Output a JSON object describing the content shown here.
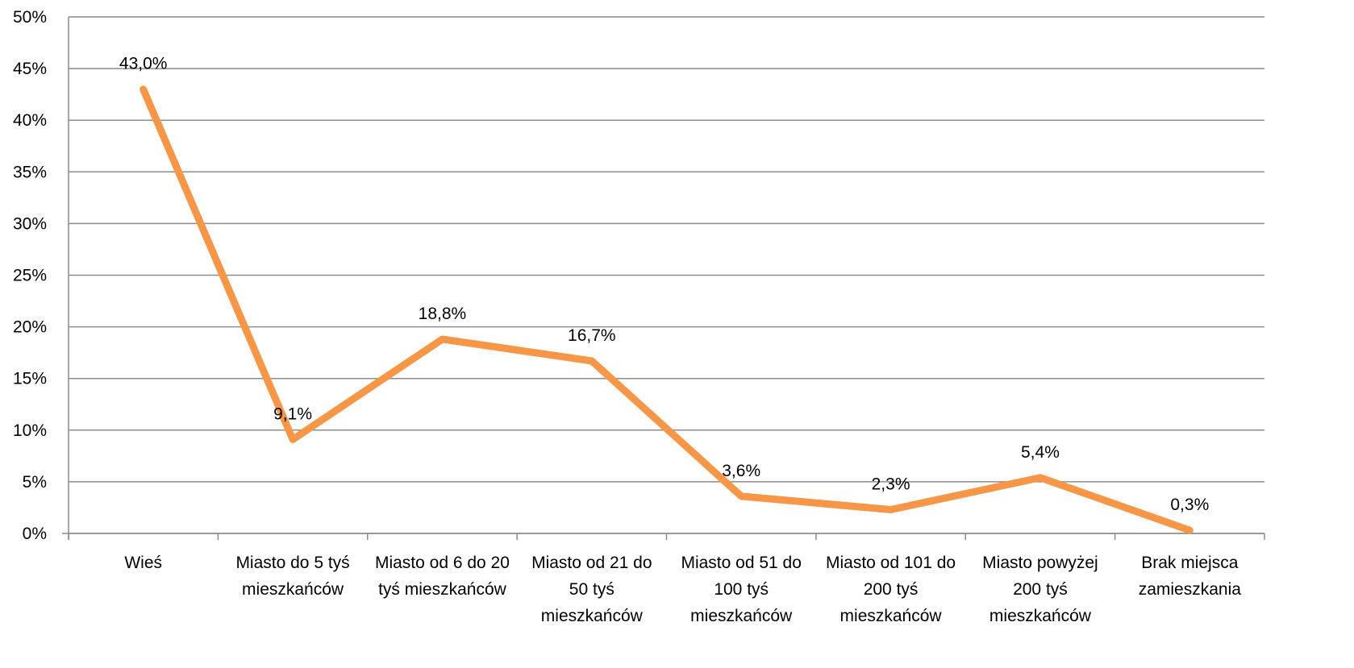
{
  "chart_data": {
    "type": "line",
    "categories": [
      "Wieś",
      "Miasto do 5 tyś mieszkańców",
      "Miasto od 6 do 20 tyś mieszkańców",
      "Miasto od 21 do 50 tyś mieszkańców",
      "Miasto od 51 do 100 tyś mieszkańców",
      "Miasto od 101 do 200 tyś mieszkańców",
      "Miasto powyżej 200 tyś mieszkańców",
      "Brak miejsca zamieszkania"
    ],
    "series": [
      {
        "name": null,
        "color": "#f79646",
        "values": [
          43.0,
          9.1,
          18.8,
          16.7,
          3.6,
          2.3,
          5.4,
          0.3
        ],
        "value_labels": [
          "43,0%",
          "9,1%",
          "18,8%",
          "16,7%",
          "3,6%",
          "2,3%",
          "5,4%",
          "0,3%"
        ]
      }
    ],
    "ylim": [
      0,
      50
    ],
    "yticks": [
      {
        "value": 0,
        "label": "0%"
      },
      {
        "value": 5,
        "label": "5%"
      },
      {
        "value": 10,
        "label": "10%"
      },
      {
        "value": 15,
        "label": "15%"
      },
      {
        "value": 20,
        "label": "20%"
      },
      {
        "value": 25,
        "label": "25%"
      },
      {
        "value": 30,
        "label": "30%"
      },
      {
        "value": 35,
        "label": "35%"
      },
      {
        "value": 40,
        "label": "40%"
      },
      {
        "value": 45,
        "label": "45%"
      },
      {
        "value": 50,
        "label": "50%"
      }
    ],
    "grid": true
  }
}
